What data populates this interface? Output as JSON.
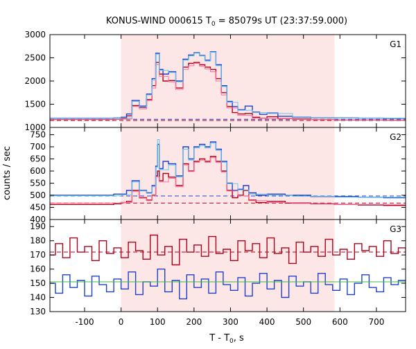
{
  "chart_data": {
    "type": "line",
    "title_main": "KONUS-WIND 000615 T",
    "title_sub": "0",
    "title_rest": " = 85079s UT (23:37:59.000)",
    "xlabel_main": "T - T",
    "xlabel_sub": "0",
    "xlabel_rest": ", s",
    "ylabel": "counts / sec",
    "xlim": [
      -195,
      780
    ],
    "xticks": [
      -100,
      0,
      100,
      200,
      300,
      400,
      500,
      600,
      700
    ],
    "xtick_labels": [
      "-100",
      "0",
      "100",
      "200",
      "300",
      "400",
      "500",
      "600",
      "700"
    ],
    "shaded_interval": [
      0,
      585
    ],
    "colors": {
      "shade": "#fde6e6",
      "red": "#b0001a",
      "blue": "#1e3fc8",
      "pink": "#ff6e9e",
      "cyan": "#5fc8f0",
      "green": "#3cbf3c",
      "axis": "#000000"
    },
    "panels": [
      {
        "name": "G1",
        "ylim": [
          1000,
          3000
        ],
        "yticks": [
          1000,
          1500,
          2000,
          2500,
          3000
        ],
        "ytick_labels": [
          "1000",
          "1500",
          "2000",
          "2500",
          "3000"
        ],
        "background_red": 1150,
        "background_blue": 1175,
        "series": [
          {
            "color": "red",
            "x": [
              -195,
              -20,
              0,
              15,
              30,
              50,
              70,
              85,
              95,
              105,
              115,
              130,
              150,
              170,
              185,
              200,
              215,
              230,
              245,
              260,
              275,
              290,
              305,
              320,
              340,
              360,
              380,
              400,
              430,
              470,
              520,
              585,
              650,
              720,
              780
            ],
            "y": [
              1170,
              1175,
              1190,
              1250,
              1470,
              1430,
              1600,
              1900,
              2400,
              2150,
              2000,
              2010,
              1850,
              2300,
              2380,
              2400,
              2350,
              2300,
              2250,
              2050,
              1750,
              1450,
              1320,
              1290,
              1300,
              1220,
              1200,
              1230,
              1190,
              1180,
              1170,
              1160,
              1160,
              1155,
              1150
            ]
          },
          {
            "color": "blue",
            "x": [
              -195,
              -20,
              0,
              15,
              30,
              50,
              70,
              85,
              95,
              105,
              115,
              130,
              150,
              170,
              185,
              200,
              215,
              230,
              245,
              260,
              275,
              290,
              305,
              320,
              340,
              360,
              380,
              400,
              430,
              470,
              520,
              585,
              650,
              720,
              780
            ],
            "y": [
              1200,
              1205,
              1220,
              1290,
              1580,
              1460,
              1720,
              2050,
              2600,
              2250,
              2150,
              2200,
              2000,
              2470,
              2560,
              2610,
              2550,
              2450,
              2630,
              2350,
              1900,
              1560,
              1450,
              1380,
              1460,
              1330,
              1280,
              1310,
              1240,
              1220,
              1210,
              1205,
              1200,
              1195,
              1190
            ]
          },
          {
            "color": "pink",
            "x": [
              -195,
              0,
              30,
              50,
              70,
              85,
              95,
              105,
              130,
              150,
              170,
              185,
              200,
              215,
              230,
              245,
              260,
              275,
              290,
              320,
              360,
              400,
              470,
              585,
              780
            ],
            "y": [
              1175,
              1180,
              1450,
              1400,
              1580,
              1850,
              2350,
              2100,
              1980,
              1820,
              2250,
              2330,
              2380,
              2320,
              2260,
              2200,
              2000,
              1700,
              1420,
              1260,
              1200,
              1190,
              1170,
              1160,
              1150
            ]
          },
          {
            "color": "cyan",
            "x": [
              -195,
              0,
              30,
              50,
              70,
              85,
              95,
              105,
              130,
              150,
              170,
              185,
              200,
              215,
              230,
              245,
              260,
              275,
              290,
              320,
              360,
              400,
              470,
              585,
              780
            ],
            "y": [
              1200,
              1205,
              1560,
              1440,
              1700,
              2020,
              2580,
              2230,
              2180,
              1980,
              2450,
              2540,
              2600,
              2540,
              2430,
              2620,
              2330,
              1880,
              1540,
              1370,
              1320,
              1300,
              1210,
              1200,
              1190
            ]
          }
        ]
      },
      {
        "name": "G2",
        "ylim": [
          400,
          780
        ],
        "yticks": [
          400,
          450,
          500,
          550,
          600,
          650,
          700,
          750
        ],
        "ytick_labels": [
          "400",
          "450",
          "500",
          "550",
          "600",
          "650",
          "700",
          "750"
        ],
        "background_red": 468,
        "background_blue": 497,
        "series": [
          {
            "color": "red",
            "x": [
              -195,
              -20,
              0,
              15,
              30,
              50,
              70,
              85,
              95,
              100,
              105,
              115,
              130,
              150,
              170,
              185,
              200,
              215,
              230,
              245,
              260,
              275,
              290,
              305,
              320,
              335,
              350,
              370,
              400,
              450,
              520,
              585,
              650,
              720,
              780
            ],
            "y": [
              462,
              465,
              470,
              475,
              520,
              490,
              480,
              500,
              580,
              600,
              560,
              590,
              575,
              540,
              630,
              600,
              640,
              650,
              640,
              660,
              640,
              600,
              520,
              490,
              500,
              520,
              480,
              470,
              475,
              468,
              465,
              462,
              460,
              458,
              455
            ]
          },
          {
            "color": "blue",
            "x": [
              -195,
              -20,
              0,
              15,
              30,
              50,
              70,
              85,
              95,
              100,
              105,
              115,
              130,
              150,
              170,
              185,
              200,
              215,
              230,
              245,
              260,
              275,
              290,
              305,
              320,
              335,
              350,
              370,
              400,
              450,
              520,
              585,
              650,
              720,
              780
            ],
            "y": [
              500,
              505,
              505,
              520,
              560,
              520,
              510,
              540,
              620,
              710,
              610,
              640,
              630,
              580,
              700,
              650,
              700,
              710,
              700,
              720,
              690,
              640,
              550,
              520,
              525,
              540,
              510,
              500,
              505,
              500,
              495,
              495,
              492,
              490,
              488
            ]
          },
          {
            "color": "pink",
            "x": [
              -195,
              0,
              30,
              50,
              70,
              85,
              95,
              105,
              130,
              150,
              170,
              185,
              200,
              215,
              230,
              245,
              260,
              275,
              290,
              320,
              350,
              400,
              470,
              585,
              780
            ],
            "y": [
              468,
              470,
              515,
              488,
              478,
              498,
              575,
              555,
              570,
              535,
              625,
              598,
              636,
              645,
              636,
              655,
              636,
              596,
              518,
              498,
              478,
              470,
              466,
              462,
              455
            ]
          },
          {
            "color": "cyan",
            "x": [
              -195,
              0,
              30,
              50,
              70,
              85,
              95,
              100,
              105,
              130,
              150,
              170,
              185,
              200,
              215,
              230,
              245,
              260,
              275,
              290,
              320,
              350,
              400,
              470,
              585,
              780
            ],
            "y": [
              498,
              502,
              555,
              518,
              508,
              535,
              615,
              730,
              605,
              625,
              575,
              690,
              645,
              695,
              705,
              695,
              715,
              685,
              636,
              548,
              522,
              505,
              500,
              496,
              492,
              486
            ]
          }
        ]
      },
      {
        "name": "G3",
        "ylim": [
          130,
          195
        ],
        "yticks": [
          130,
          140,
          150,
          160,
          170,
          180,
          190
        ],
        "ytick_labels": [
          "130",
          "140",
          "150",
          "160",
          "170",
          "180",
          "190"
        ],
        "background_red": 172,
        "background_blue": 151,
        "series": [
          {
            "color": "red",
            "x": [
              -195,
              -180,
              -160,
              -140,
              -120,
              -100,
              -80,
              -60,
              -40,
              -20,
              0,
              20,
              40,
              60,
              80,
              100,
              120,
              140,
              160,
              180,
              200,
              220,
              240,
              260,
              280,
              300,
              320,
              340,
              360,
              380,
              400,
              420,
              440,
              460,
              480,
              500,
              520,
              540,
              560,
              580,
              600,
              620,
              640,
              660,
              680,
              700,
              720,
              740,
              760,
              780
            ],
            "y": [
              170,
              178,
              168,
              182,
              172,
              176,
              166,
              180,
              171,
              175,
              168,
              179,
              173,
              167,
              184,
              170,
              176,
              163,
              181,
              172,
              177,
              169,
              183,
              171,
              174,
              166,
              180,
              173,
              178,
              168,
              182,
              171,
              175,
              164,
              179,
              172,
              176,
              169,
              181,
              170,
              174,
              167,
              178,
              173,
              176,
              169,
              180,
              171,
              175,
              170
            ]
          },
          {
            "color": "blue",
            "x": [
              -195,
              -180,
              -160,
              -140,
              -120,
              -100,
              -80,
              -60,
              -40,
              -20,
              0,
              20,
              40,
              60,
              80,
              100,
              120,
              140,
              160,
              180,
              200,
              220,
              240,
              260,
              280,
              300,
              320,
              340,
              360,
              380,
              400,
              420,
              440,
              460,
              480,
              500,
              520,
              540,
              560,
              580,
              600,
              620,
              640,
              660,
              680,
              700,
              720,
              740,
              760,
              780
            ],
            "y": [
              150,
              143,
              156,
              147,
              152,
              141,
              155,
              149,
              144,
              153,
              146,
              158,
              142,
              151,
              148,
              160,
              144,
              152,
              139,
              156,
              147,
              153,
              143,
              158,
              149,
              145,
              154,
              141,
              150,
              157,
              146,
              152,
              140,
              155,
              148,
              151,
              143,
              157,
              149,
              145,
              153,
              142,
              150,
              156,
              147,
              144,
              154,
              149,
              152,
              146
            ]
          },
          {
            "color": "green",
            "x": [
              -195,
              780
            ],
            "y": [
              151,
              151
            ]
          }
        ]
      }
    ]
  }
}
